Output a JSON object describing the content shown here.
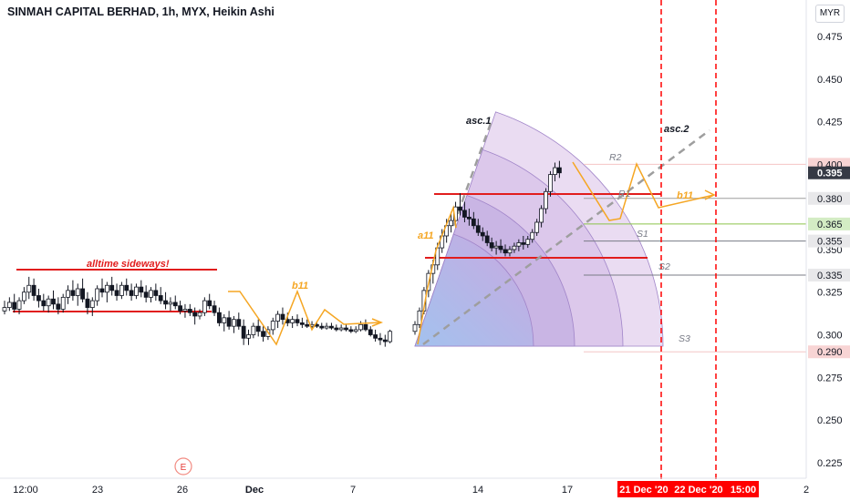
{
  "header": {
    "title": "SINMAH CAPITAL BERHAD, 1h, MYX, Heikin Ashi",
    "currency": "MYR"
  },
  "colors": {
    "up": "#ffffff",
    "down": "#131722",
    "support_resistance": "#e11d1d",
    "pattern": "#f5a623",
    "trend": "#9e9e9e",
    "fan": "#b39ddb",
    "session_marker": "#ff0000",
    "last_price": "#363a45"
  },
  "chart_data": {
    "type": "candlestick",
    "style": "Heikin Ashi",
    "y_axis": {
      "ticks": [
        "0.475",
        "0.450",
        "0.425",
        "0.395",
        "0.350",
        "0.325",
        "0.300",
        "0.275",
        "0.250",
        "0.225"
      ],
      "range": [
        0.217,
        0.485
      ],
      "price_labels": [
        {
          "label": "0.400",
          "value": 0.4,
          "style": "light-red"
        },
        {
          "label": "0.395",
          "value": 0.395,
          "style": "dark"
        },
        {
          "label": "0.380",
          "value": 0.38,
          "style": "light-grey"
        },
        {
          "label": "0.365",
          "value": 0.365,
          "style": "light-green"
        },
        {
          "label": "0.355",
          "value": 0.355,
          "style": "light-grey"
        },
        {
          "label": "0.335",
          "value": 0.335,
          "style": "light-grey"
        },
        {
          "label": "0.290",
          "value": 0.29,
          "style": "light-red"
        }
      ]
    },
    "x_axis": {
      "labels": [
        "12:00",
        "23",
        "26",
        "Dec",
        "7",
        "14",
        "17",
        "2"
      ],
      "highlighted_labels": [
        "21 Dec '20",
        "22 Dec '20",
        "15:00"
      ]
    },
    "candles": [
      [
        0.314,
        0.32,
        0.312,
        0.316
      ],
      [
        0.316,
        0.322,
        0.314,
        0.319
      ],
      [
        0.319,
        0.324,
        0.313,
        0.315
      ],
      [
        0.315,
        0.322,
        0.312,
        0.32
      ],
      [
        0.32,
        0.328,
        0.318,
        0.325
      ],
      [
        0.325,
        0.334,
        0.321,
        0.329
      ],
      [
        0.329,
        0.333,
        0.32,
        0.323
      ],
      [
        0.323,
        0.327,
        0.316,
        0.32
      ],
      [
        0.32,
        0.324,
        0.314,
        0.317
      ],
      [
        0.317,
        0.323,
        0.313,
        0.321
      ],
      [
        0.321,
        0.326,
        0.315,
        0.318
      ],
      [
        0.318,
        0.322,
        0.312,
        0.315
      ],
      [
        0.315,
        0.324,
        0.313,
        0.322
      ],
      [
        0.322,
        0.329,
        0.318,
        0.326
      ],
      [
        0.326,
        0.332,
        0.32,
        0.323
      ],
      [
        0.323,
        0.33,
        0.317,
        0.327
      ],
      [
        0.327,
        0.333,
        0.319,
        0.321
      ],
      [
        0.321,
        0.325,
        0.312,
        0.316
      ],
      [
        0.316,
        0.322,
        0.311,
        0.32
      ],
      [
        0.32,
        0.329,
        0.317,
        0.327
      ],
      [
        0.327,
        0.333,
        0.322,
        0.325
      ],
      [
        0.325,
        0.331,
        0.319,
        0.329
      ],
      [
        0.329,
        0.334,
        0.323,
        0.326
      ],
      [
        0.326,
        0.33,
        0.32,
        0.323
      ],
      [
        0.323,
        0.331,
        0.321,
        0.329
      ],
      [
        0.329,
        0.333,
        0.323,
        0.326
      ],
      [
        0.326,
        0.33,
        0.32,
        0.323
      ],
      [
        0.323,
        0.33,
        0.321,
        0.328
      ],
      [
        0.328,
        0.332,
        0.322,
        0.325
      ],
      [
        0.325,
        0.329,
        0.319,
        0.322
      ],
      [
        0.322,
        0.328,
        0.319,
        0.326
      ],
      [
        0.326,
        0.33,
        0.32,
        0.323
      ],
      [
        0.323,
        0.328,
        0.318,
        0.32
      ],
      [
        0.32,
        0.325,
        0.315,
        0.318
      ],
      [
        0.318,
        0.322,
        0.314,
        0.319
      ],
      [
        0.319,
        0.323,
        0.315,
        0.317
      ],
      [
        0.317,
        0.32,
        0.312,
        0.314
      ],
      [
        0.314,
        0.318,
        0.31,
        0.315
      ],
      [
        0.315,
        0.318,
        0.311,
        0.313
      ],
      [
        0.313,
        0.316,
        0.306,
        0.311
      ],
      [
        0.311,
        0.315,
        0.309,
        0.313
      ],
      [
        0.313,
        0.322,
        0.311,
        0.32
      ],
      [
        0.32,
        0.324,
        0.315,
        0.317
      ],
      [
        0.317,
        0.32,
        0.311,
        0.313
      ],
      [
        0.313,
        0.316,
        0.305,
        0.307
      ],
      [
        0.307,
        0.312,
        0.302,
        0.31
      ],
      [
        0.31,
        0.314,
        0.303,
        0.305
      ],
      [
        0.305,
        0.311,
        0.301,
        0.309
      ],
      [
        0.309,
        0.313,
        0.303,
        0.305
      ],
      [
        0.305,
        0.309,
        0.294,
        0.298
      ],
      [
        0.298,
        0.303,
        0.294,
        0.3
      ],
      [
        0.3,
        0.307,
        0.298,
        0.305
      ],
      [
        0.305,
        0.309,
        0.299,
        0.302
      ],
      [
        0.302,
        0.305,
        0.296,
        0.299
      ],
      [
        0.299,
        0.305,
        0.297,
        0.303
      ],
      [
        0.303,
        0.31,
        0.3,
        0.308
      ],
      [
        0.308,
        0.314,
        0.304,
        0.312
      ],
      [
        0.312,
        0.316,
        0.306,
        0.309
      ],
      [
        0.309,
        0.313,
        0.305,
        0.307
      ],
      [
        0.307,
        0.311,
        0.304,
        0.309
      ],
      [
        0.309,
        0.312,
        0.305,
        0.307
      ],
      [
        0.307,
        0.31,
        0.304,
        0.306
      ],
      [
        0.306,
        0.309,
        0.304,
        0.305
      ],
      [
        0.305,
        0.308,
        0.304,
        0.306
      ],
      [
        0.306,
        0.308,
        0.304,
        0.305
      ],
      [
        0.305,
        0.307,
        0.303,
        0.304
      ],
      [
        0.304,
        0.307,
        0.303,
        0.305
      ],
      [
        0.305,
        0.307,
        0.303,
        0.304
      ],
      [
        0.304,
        0.306,
        0.302,
        0.303
      ],
      [
        0.303,
        0.306,
        0.302,
        0.304
      ],
      [
        0.304,
        0.306,
        0.302,
        0.303
      ],
      [
        0.303,
        0.305,
        0.301,
        0.302
      ],
      [
        0.302,
        0.305,
        0.301,
        0.303
      ],
      [
        0.303,
        0.308,
        0.302,
        0.306
      ],
      [
        0.306,
        0.309,
        0.302,
        0.303
      ],
      [
        0.303,
        0.305,
        0.299,
        0.3
      ],
      [
        0.3,
        0.303,
        0.296,
        0.298
      ],
      [
        0.298,
        0.301,
        0.294,
        0.297
      ],
      [
        0.297,
        0.3,
        0.293,
        0.296
      ],
      [
        0.296,
        0.303,
        0.295,
        0.302
      ],
      [
        0.302,
        0.308,
        0.3,
        0.306
      ],
      [
        0.306,
        0.316,
        0.304,
        0.314
      ],
      [
        0.314,
        0.328,
        0.312,
        0.326
      ],
      [
        0.326,
        0.338,
        0.322,
        0.336
      ],
      [
        0.336,
        0.344,
        0.33,
        0.341
      ],
      [
        0.341,
        0.354,
        0.338,
        0.351
      ],
      [
        0.351,
        0.362,
        0.348,
        0.358
      ],
      [
        0.358,
        0.368,
        0.354,
        0.364
      ],
      [
        0.364,
        0.372,
        0.36,
        0.367
      ],
      [
        0.367,
        0.378,
        0.363,
        0.375
      ],
      [
        0.375,
        0.383,
        0.37,
        0.373
      ],
      [
        0.373,
        0.378,
        0.366,
        0.369
      ],
      [
        0.369,
        0.374,
        0.364,
        0.368
      ],
      [
        0.368,
        0.372,
        0.362,
        0.364
      ],
      [
        0.364,
        0.368,
        0.358,
        0.36
      ],
      [
        0.36,
        0.363,
        0.355,
        0.358
      ],
      [
        0.358,
        0.361,
        0.352,
        0.354
      ],
      [
        0.354,
        0.357,
        0.349,
        0.351
      ],
      [
        0.351,
        0.355,
        0.347,
        0.352
      ],
      [
        0.352,
        0.356,
        0.348,
        0.35
      ],
      [
        0.35,
        0.353,
        0.346,
        0.348
      ],
      [
        0.348,
        0.352,
        0.346,
        0.35
      ],
      [
        0.35,
        0.354,
        0.348,
        0.352
      ],
      [
        0.352,
        0.356,
        0.349,
        0.354
      ],
      [
        0.354,
        0.358,
        0.35,
        0.353
      ],
      [
        0.353,
        0.358,
        0.351,
        0.356
      ],
      [
        0.356,
        0.362,
        0.354,
        0.36
      ],
      [
        0.36,
        0.368,
        0.358,
        0.366
      ],
      [
        0.366,
        0.376,
        0.363,
        0.374
      ],
      [
        0.374,
        0.386,
        0.371,
        0.384
      ],
      [
        0.384,
        0.396,
        0.381,
        0.394
      ],
      [
        0.394,
        0.401,
        0.39,
        0.398
      ],
      [
        0.398,
        0.402,
        0.392,
        0.395
      ]
    ],
    "horizontal_lines": [
      {
        "value": 0.4,
        "color": "#f4c5c5"
      },
      {
        "value": 0.38,
        "color": "#9e9e9e"
      },
      {
        "value": 0.365,
        "color": "#8bc34a"
      },
      {
        "value": 0.355,
        "color": "#787b86"
      },
      {
        "value": 0.335,
        "color": "#787b86"
      },
      {
        "value": 0.29,
        "color": "#f4c5c5"
      }
    ],
    "annotations": [
      {
        "text": "alltime sideways!",
        "color": "#e11d1d",
        "kind": "label"
      },
      {
        "text": "b11",
        "color": "#f5a623",
        "kind": "label"
      },
      {
        "text": "a11",
        "color": "#f5a623",
        "kind": "label"
      },
      {
        "text": "b11",
        "color": "#f5a623",
        "kind": "label"
      },
      {
        "text": "asc.1",
        "color": "#131722",
        "kind": "label"
      },
      {
        "text": "asc.2",
        "color": "#131722",
        "kind": "label"
      },
      {
        "text": "R2",
        "color": "#787b86",
        "kind": "level"
      },
      {
        "text": "R1",
        "color": "#787b86",
        "kind": "level"
      },
      {
        "text": "S1",
        "color": "#787b86",
        "kind": "level"
      },
      {
        "text": "S2",
        "color": "#787b86",
        "kind": "level"
      },
      {
        "text": "S3",
        "color": "#787b86",
        "kind": "level"
      }
    ],
    "events": [
      {
        "text": "E"
      }
    ]
  }
}
